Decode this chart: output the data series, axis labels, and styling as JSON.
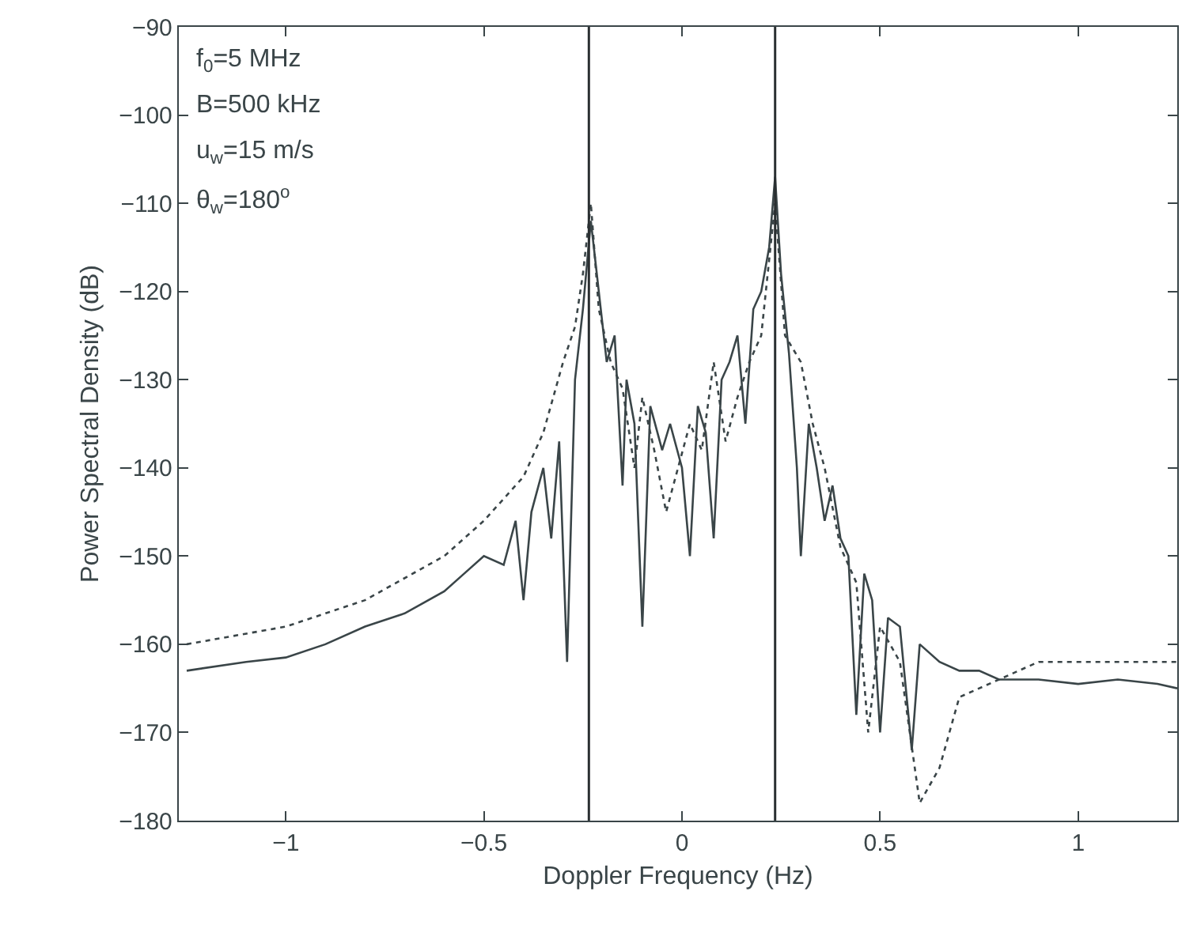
{
  "chart_data": {
    "type": "line",
    "xlabel": "Doppler Frequency (Hz)",
    "ylabel": "Power Spectral Density (dB)",
    "annotations": [
      "f$_{0}$=5 MHz",
      "B=500 kHz",
      "u$_{w}$=15 m/s",
      "θ$_{w}$=180$^{o}$"
    ],
    "xlim": [
      -1.27,
      1.25
    ],
    "xticks": [
      -1,
      -0.5,
      0,
      0.5,
      1
    ],
    "ylim": [
      -180,
      -90
    ],
    "yticks": [
      -180,
      -170,
      -160,
      -150,
      -140,
      -130,
      -120,
      -110,
      -100,
      -90
    ],
    "grid": false,
    "ref_lines": [
      {
        "axis": "x",
        "value": -0.235,
        "color": "#2a2f31"
      },
      {
        "axis": "x",
        "value": 0.235,
        "color": "#2a2f31"
      }
    ],
    "series": [
      {
        "color": "#3a4548",
        "line_style": "solid",
        "x": [
          -1.25,
          -1.1,
          -1.0,
          -0.9,
          -0.8,
          -0.7,
          -0.6,
          -0.55,
          -0.5,
          -0.45,
          -0.42,
          -0.4,
          -0.38,
          -0.35,
          -0.33,
          -0.31,
          -0.29,
          -0.27,
          -0.25,
          -0.23,
          -0.21,
          -0.19,
          -0.17,
          -0.15,
          -0.14,
          -0.12,
          -0.1,
          -0.08,
          -0.05,
          -0.03,
          0,
          0.02,
          0.04,
          0.06,
          0.08,
          0.1,
          0.12,
          0.14,
          0.16,
          0.18,
          0.2,
          0.22,
          0.235,
          0.25,
          0.27,
          0.29,
          0.3,
          0.32,
          0.34,
          0.36,
          0.38,
          0.4,
          0.42,
          0.44,
          0.46,
          0.48,
          0.5,
          0.52,
          0.55,
          0.58,
          0.6,
          0.65,
          0.7,
          0.75,
          0.8,
          0.9,
          1.0,
          1.1,
          1.2,
          1.25
        ],
        "values": [
          -163,
          -162,
          -161.5,
          -160,
          -158,
          -156.5,
          -154,
          -152,
          -150,
          -151,
          -146,
          -155,
          -145,
          -140,
          -148,
          -137,
          -162,
          -130,
          -122,
          -112,
          -120,
          -128,
          -125,
          -142,
          -130,
          -135,
          -158,
          -133,
          -138,
          -135,
          -140,
          -150,
          -133,
          -136,
          -148,
          -130,
          -128,
          -125,
          -135,
          -122,
          -120,
          -115,
          -107,
          -118,
          -127,
          -140,
          -150,
          -135,
          -140,
          -146,
          -142,
          -148,
          -150,
          -168,
          -152,
          -155,
          -170,
          -157,
          -158,
          -172,
          -160,
          -162,
          -163,
          -163,
          -164,
          -164,
          -164.5,
          -164,
          -164.5,
          -165
        ]
      },
      {
        "color": "#3a4548",
        "line_style": "dotted",
        "x": [
          -1.25,
          -1.0,
          -0.8,
          -0.6,
          -0.5,
          -0.4,
          -0.35,
          -0.3,
          -0.27,
          -0.25,
          -0.23,
          -0.21,
          -0.18,
          -0.15,
          -0.12,
          -0.1,
          -0.07,
          -0.04,
          -0.01,
          0.02,
          0.05,
          0.08,
          0.11,
          0.14,
          0.17,
          0.2,
          0.235,
          0.26,
          0.3,
          0.33,
          0.36,
          0.4,
          0.44,
          0.47,
          0.5,
          0.55,
          0.6,
          0.65,
          0.7,
          0.8,
          0.9,
          1.0,
          1.1,
          1.25
        ],
        "values": [
          -160,
          -158,
          -155,
          -150,
          -146,
          -141,
          -136,
          -128,
          -124,
          -118,
          -110,
          -122,
          -128,
          -131,
          -140,
          -132,
          -138,
          -145,
          -140,
          -135,
          -138,
          -128,
          -137,
          -132,
          -128,
          -125,
          -110,
          -125,
          -128,
          -135,
          -140,
          -149,
          -153,
          -170,
          -158,
          -162,
          -178,
          -174,
          -166,
          -164,
          -162,
          -162,
          -162,
          -162
        ]
      }
    ]
  }
}
